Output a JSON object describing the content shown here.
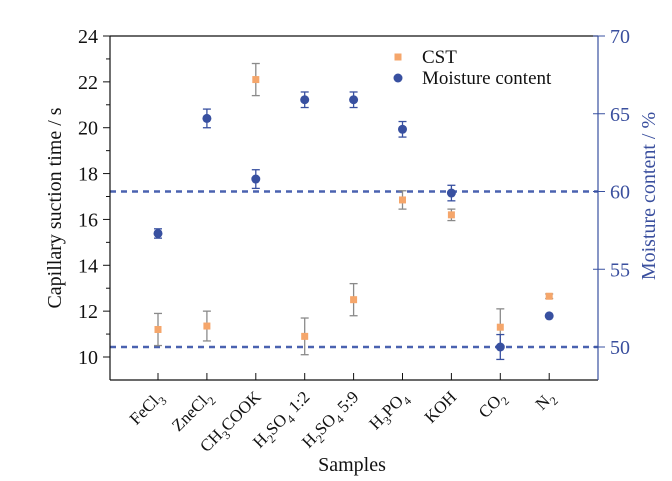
{
  "chart_data": {
    "type": "scatter",
    "title": "",
    "xlabel": "Samples",
    "ylabel": "Capillary suction time / s",
    "y2label": "Moisture content / %",
    "categories": [
      {
        "base": "FeCl",
        "sub": "3",
        "rest": ""
      },
      {
        "base": "ZneCl",
        "sub": "2",
        "rest": ""
      },
      {
        "base": "CH",
        "sub": "3",
        "rest": "COOK"
      },
      {
        "base": "H",
        "sub": "2",
        "rest": "SO",
        "sub2": "4",
        "rest2": " 1:2"
      },
      {
        "base": "H",
        "sub": "2",
        "rest": "SO",
        "sub2": "4",
        "rest2": " 5:9"
      },
      {
        "base": "H",
        "sub": "3",
        "rest": "PO",
        "sub2": "4",
        "rest2": ""
      },
      {
        "base": "KOH",
        "sub": "",
        "rest": ""
      },
      {
        "base": "CO",
        "sub": "2",
        "rest": ""
      },
      {
        "base": "N",
        "sub": "2",
        "rest": ""
      }
    ],
    "category_text": [
      "FeCl3",
      "ZneCl2",
      "CH3COOK",
      "H2SO4 1:2",
      "H2SO4 5:9",
      "H3PO4",
      "KOH",
      "CO2",
      "N2"
    ],
    "ylim": [
      9,
      24
    ],
    "yticks": [
      10,
      12,
      14,
      16,
      18,
      20,
      22,
      24
    ],
    "y2lim": [
      48,
      70
    ],
    "y2ticks": [
      50,
      55,
      60,
      65,
      70
    ],
    "series": [
      {
        "name": "CST",
        "axis": "left",
        "marker": "square",
        "color": "#f5a66b",
        "errcolor": "#8a8a8a",
        "values": [
          11.2,
          11.35,
          22.1,
          10.9,
          12.5,
          16.85,
          16.2,
          11.3,
          12.65
        ],
        "errors": [
          0.7,
          0.65,
          0.7,
          0.8,
          0.7,
          0.4,
          0.25,
          0.8,
          0.1
        ]
      },
      {
        "name": "Moisture content",
        "axis": "right",
        "marker": "circle",
        "color": "#3850a0",
        "errcolor": "#3850a0",
        "values": [
          57.3,
          64.7,
          60.8,
          65.9,
          65.9,
          64.0,
          59.9,
          50.0,
          52.0
        ],
        "errors": [
          0.3,
          0.6,
          0.6,
          0.5,
          0.5,
          0.5,
          0.5,
          0.8,
          0.0
        ]
      }
    ],
    "reference_lines": [
      {
        "axis": "right",
        "value": 60,
        "style": "dashed",
        "color": "#4a62b0"
      },
      {
        "axis": "right",
        "value": 50,
        "style": "dashed",
        "color": "#4a62b0"
      }
    ],
    "legend": {
      "position": "top-right",
      "entries": [
        "CST",
        "Moisture content"
      ]
    },
    "grid": false
  }
}
